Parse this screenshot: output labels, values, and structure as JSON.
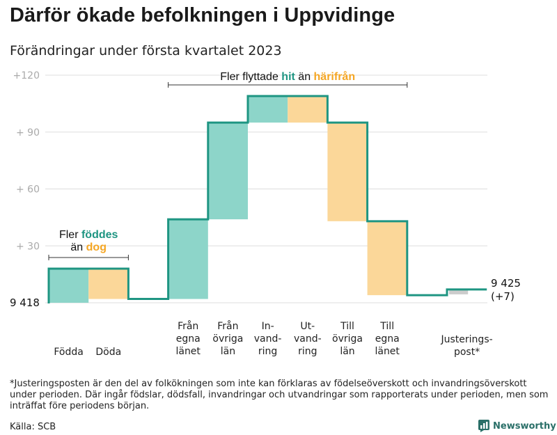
{
  "title": "Därför ökade befolkningen i Uppvidinge",
  "subtitle": "Förändringar under första kvartalet 2023",
  "footnote": "*Justeringsposten är den del av folkökningen som inte kan förklaras av födelseöverskott och invandringsöverskott under perioden. Där ingår födslar, dödsfall, invandringar och utvandringar som rapporterats under perioden, men som inträffat före periodens början.",
  "source": "Källa: SCB",
  "brand": {
    "name": "Newsworthy",
    "logo_icon": "bar-chart-logo-icon"
  },
  "colors": {
    "line": "#1e9582",
    "increase": "#8dd5c9",
    "decrease": "#fbd799",
    "adjustment": "#cccccc",
    "accent_teal": "#1e9582",
    "accent_orange": "#f5a623",
    "grid": "#dddddd",
    "tick": "#aaaaaa"
  },
  "chart_data": {
    "type": "waterfall",
    "start_label": "9 418",
    "start_value": 0,
    "end_label": "9 425",
    "end_change_label": "(+7)",
    "ylim": [
      0,
      120
    ],
    "yticks": [
      {
        "value": 30,
        "label": "+ 30"
      },
      {
        "value": 60,
        "label": "+ 60"
      },
      {
        "value": 90,
        "label": "+ 90"
      },
      {
        "value": 120,
        "label": "+120"
      }
    ],
    "steps": [
      {
        "lines": [
          "Födda"
        ],
        "change": 18,
        "kind": "increase"
      },
      {
        "lines": [
          "Döda"
        ],
        "change": -16,
        "kind": "decrease"
      },
      {
        "lines": [],
        "change": 0,
        "kind": "gap"
      },
      {
        "lines": [
          "Från",
          "egna",
          "länet"
        ],
        "change": 42,
        "kind": "increase"
      },
      {
        "lines": [
          "Från",
          "övriga",
          "län"
        ],
        "change": 51,
        "kind": "increase"
      },
      {
        "lines": [
          "In-",
          "vand-",
          "ring"
        ],
        "change": 14,
        "kind": "increase"
      },
      {
        "lines": [
          "Ut-",
          "vand-",
          "ring"
        ],
        "change": -14,
        "kind": "decrease"
      },
      {
        "lines": [
          "Till",
          "övriga",
          "län"
        ],
        "change": -52,
        "kind": "decrease"
      },
      {
        "lines": [
          "Till",
          "egna",
          "länet"
        ],
        "change": -39,
        "kind": "decrease"
      },
      {
        "lines": [],
        "change": 0,
        "kind": "gap"
      },
      {
        "lines": [
          "Justerings-",
          "post*"
        ],
        "change": 3,
        "kind": "adjustment"
      }
    ],
    "annotations": [
      {
        "from_step": 0,
        "to_step": 1,
        "lines": [
          [
            {
              "text": "Fler ",
              "color": "text"
            },
            {
              "text": "föddes",
              "color": "teal"
            }
          ],
          [
            {
              "text": "än ",
              "color": "text"
            },
            {
              "text": "dog",
              "color": "orange"
            }
          ]
        ]
      },
      {
        "from_step": 3,
        "to_step": 8,
        "lines": [
          [
            {
              "text": "Fler flyttade ",
              "color": "text"
            },
            {
              "text": "hit",
              "color": "teal"
            },
            {
              "text": " än ",
              "color": "text"
            },
            {
              "text": "härifrån",
              "color": "orange"
            }
          ]
        ]
      }
    ]
  }
}
